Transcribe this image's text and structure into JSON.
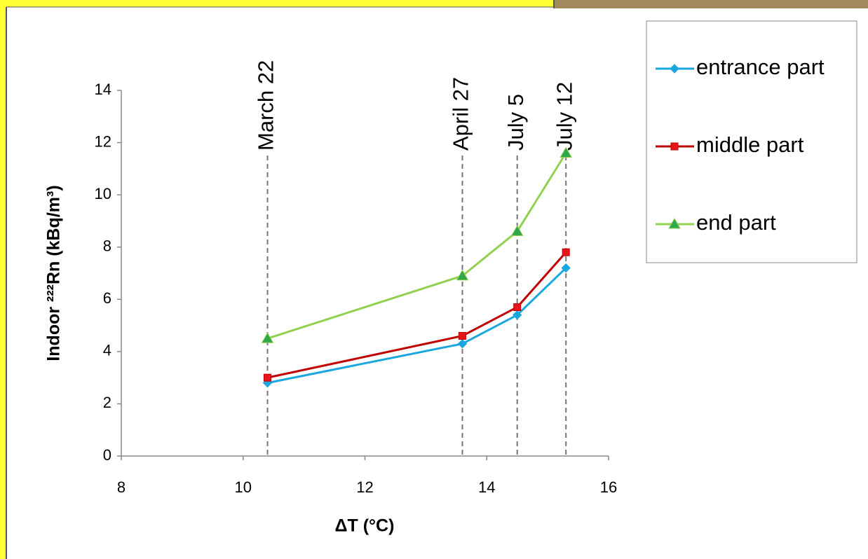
{
  "chart_data": {
    "type": "line",
    "xlabel": "ΔT (°C)",
    "ylabel": "Indoor ²²²Rn (kBq/m³)",
    "xlim": [
      8,
      16
    ],
    "xticks": [
      8,
      10,
      12,
      14,
      16
    ],
    "ylim": [
      0,
      14
    ],
    "yticks": [
      0,
      2,
      4,
      6,
      8,
      10,
      12,
      14
    ],
    "x": [
      10.4,
      13.6,
      14.5,
      15.3
    ],
    "series": [
      {
        "name": "entrance part",
        "color": "#1aa7e0",
        "marker": "diamond",
        "values": [
          2.8,
          4.3,
          5.4,
          7.2
        ]
      },
      {
        "name": "middle part",
        "color": "#c00000",
        "marker": "square",
        "values": [
          3.0,
          4.6,
          5.7,
          7.8
        ]
      },
      {
        "name": "end part",
        "color": "#92d050",
        "marker": "triangle",
        "values": [
          4.5,
          6.9,
          8.6,
          11.6
        ]
      }
    ],
    "annotations": [
      {
        "text": "March 22",
        "x": 10.4
      },
      {
        "text": "April 27",
        "x": 13.6
      },
      {
        "text": "July 5",
        "x": 14.5
      },
      {
        "text": "July 12",
        "x": 15.3
      }
    ],
    "legend": "right"
  }
}
